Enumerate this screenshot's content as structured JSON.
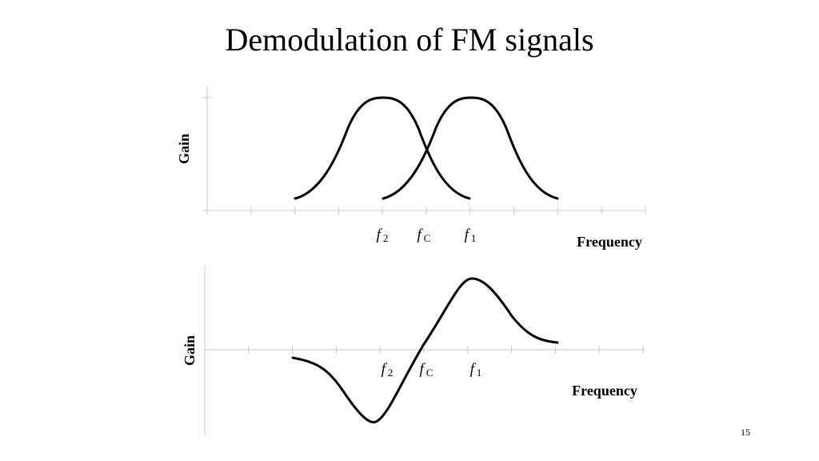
{
  "title": "Demodulation of FM signals",
  "top_plot": {
    "y_label": "Gain",
    "x_label": "Frequency",
    "markers": [
      {
        "symbol": "f",
        "subscript": "2"
      },
      {
        "symbol": "f",
        "subscript": "C"
      },
      {
        "symbol": "f",
        "subscript": "1"
      }
    ]
  },
  "bottom_plot": {
    "y_label": "Gain",
    "x_label": "Frequency",
    "markers": [
      {
        "symbol": "f",
        "subscript": "2"
      },
      {
        "symbol": "f",
        "subscript": "C"
      },
      {
        "symbol": "f",
        "subscript": "1"
      }
    ]
  },
  "page_number": "15"
}
